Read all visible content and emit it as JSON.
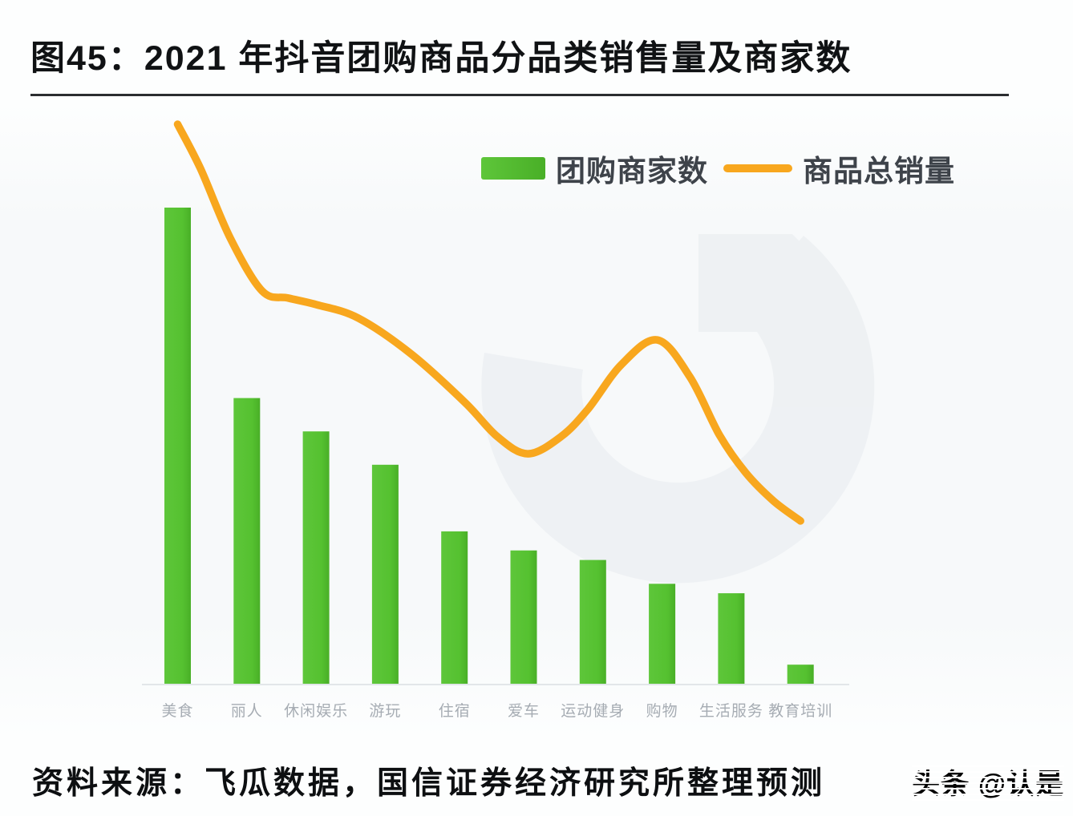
{
  "header": {
    "title": "图45：2021 年抖音团购商品分品类销售量及商家数"
  },
  "legend": {
    "bar_label": "团购商家数",
    "line_label": "商品总销量"
  },
  "footer": {
    "source": "资料来源：飞瓜数据，国信证券经济研究所整理预测",
    "watermark": "头条 @认是"
  },
  "colors": {
    "bar_green_light": "#5EC63A",
    "bar_green": "#55C130",
    "bar_green_dark": "#49AF27",
    "line_orange": "#F8A71E",
    "axis_line": "#E2E6E9",
    "axis_label": "#A6ACB3",
    "legend_text": "#3E434A",
    "title_text": "#101214",
    "watermark_gray": "#E7EBEE"
  },
  "chart_data": {
    "type": "bar+line",
    "title": "2021 年抖音团购商品分品类销售量及商家数",
    "categories": [
      "美食",
      "丽人",
      "休闲娱乐",
      "游玩",
      "住宿",
      "爱车",
      "运动健身",
      "购物",
      "生活服务",
      "教育培训"
    ],
    "series": [
      {
        "name": "团购商家数",
        "type": "bar",
        "values": [
          100,
          60,
          53,
          46,
          32,
          28,
          26,
          21,
          19,
          4
        ]
      },
      {
        "name": "商品总销量",
        "type": "line",
        "values": [
          118,
          88,
          80,
          73,
          61,
          48,
          58,
          72,
          49,
          34
        ]
      }
    ],
    "value_basis": "relative index estimated from pixel heights; tallest bar (美食) = 100; chart shows no numeric axis",
    "line_shape": [
      [
        0,
        117.5
      ],
      [
        0.33,
        108.2
      ],
      [
        0.76,
        93.6
      ],
      [
        1.22,
        82.5
      ],
      [
        1.6,
        81.0
      ],
      [
        2.01,
        79.6
      ],
      [
        2.61,
        76.8
      ],
      [
        3.38,
        69.2
      ],
      [
        4.15,
        59.1
      ],
      [
        4.62,
        51.9
      ],
      [
        5.06,
        48.3
      ],
      [
        5.54,
        51.9
      ],
      [
        5.93,
        57.7
      ],
      [
        6.41,
        67.0
      ],
      [
        6.93,
        72.2
      ],
      [
        7.4,
        64.5
      ],
      [
        7.83,
        52.2
      ],
      [
        8.21,
        44.3
      ],
      [
        8.61,
        38.4
      ],
      [
        9.0,
        34.2
      ]
    ],
    "ylim": [
      0,
      125
    ],
    "grid": false,
    "y_axis_labels": false,
    "x_axis_line": true,
    "legend_position": "top-right"
  }
}
